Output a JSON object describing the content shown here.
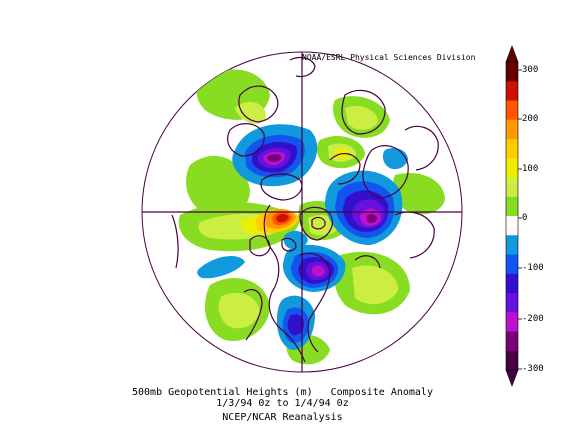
{
  "credit": "NOAA/ESRL Physical Sciences Division",
  "caption": {
    "variable": "500mb Geopotential Heights (m)",
    "kind": "Composite Anomaly",
    "dates": "1/3/94 0z  to 1/4/94 0z",
    "source": "NCEP/NCAR Reanalysis"
  },
  "colorbar": {
    "ticks": [
      "300",
      "200",
      "100",
      "0",
      "-100",
      "-200",
      "-300"
    ],
    "colors": [
      "#660000",
      "#cc1100",
      "#ff5500",
      "#ff9900",
      "#ffcc00",
      "#eeee00",
      "#ccee44",
      "#88dd22",
      "#ffffff",
      "#1199dd",
      "#1155ee",
      "#3311cc",
      "#6611dd",
      "#bb11cc",
      "#7a0077",
      "#4a0044"
    ]
  },
  "map": {
    "projection": "polar stereographic, north pole",
    "coastline_color": "#4a0040"
  }
}
